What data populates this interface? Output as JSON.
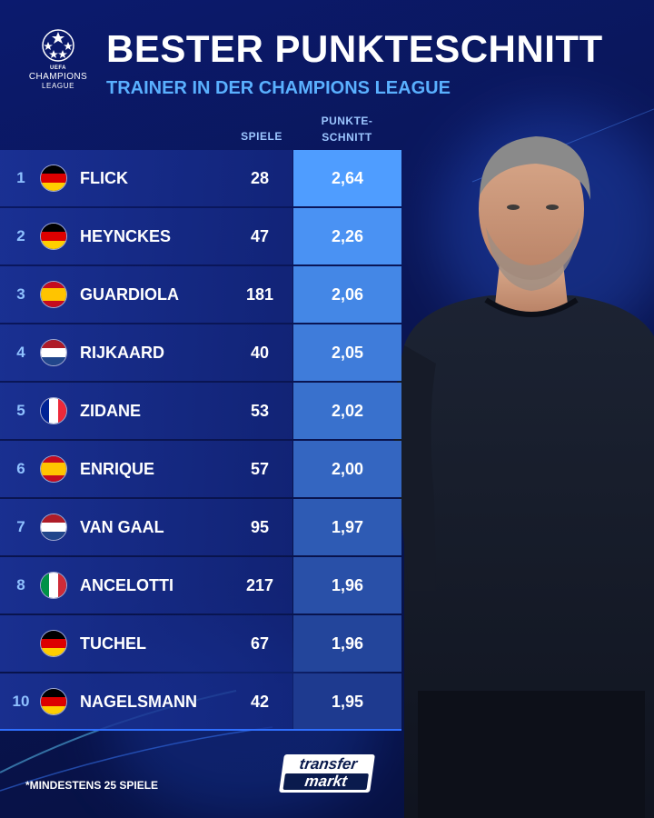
{
  "header": {
    "title": "BESTER PUNKTESCHNITT",
    "subtitle": "TRAINER IN DER CHAMPIONS LEAGUE"
  },
  "logo": {
    "icon": "champions-league-starball-icon",
    "uefa": "UEFA",
    "line1": "CHAMPIONS",
    "line2": "LEAGUE"
  },
  "columns": {
    "games": "SPIELE",
    "avg_line1": "PUNKTE-",
    "avg_line2": "SCHNITT"
  },
  "rows": [
    {
      "rank": "1",
      "flag": "germany",
      "name": "FLICK",
      "games": "28",
      "avg": "2,64"
    },
    {
      "rank": "2",
      "flag": "germany",
      "name": "HEYNCKES",
      "games": "47",
      "avg": "2,26"
    },
    {
      "rank": "3",
      "flag": "spain",
      "name": "GUARDIOLA",
      "games": "181",
      "avg": "2,06"
    },
    {
      "rank": "4",
      "flag": "netherlands",
      "name": "RIJKAARD",
      "games": "40",
      "avg": "2,05"
    },
    {
      "rank": "5",
      "flag": "france",
      "name": "ZIDANE",
      "games": "53",
      "avg": "2,02"
    },
    {
      "rank": "6",
      "flag": "spain",
      "name": "ENRIQUE",
      "games": "57",
      "avg": "2,00"
    },
    {
      "rank": "7",
      "flag": "netherlands",
      "name": "VAN GAAL",
      "games": "95",
      "avg": "1,97"
    },
    {
      "rank": "8",
      "flag": "italy",
      "name": "ANCELOTTI",
      "games": "217",
      "avg": "1,96"
    },
    {
      "rank": "",
      "flag": "germany",
      "name": "TUCHEL",
      "games": "67",
      "avg": "1,96"
    },
    {
      "rank": "10",
      "flag": "germany",
      "name": "NAGELSMANN",
      "games": "42",
      "avg": "1,95"
    }
  ],
  "footer": {
    "note": "*MINDESTENS 25 SPIELE",
    "brand_line1": "transfer",
    "brand_line2": "markt"
  },
  "colors": {
    "background": "#0a1552",
    "accent_blue": "#5ab0ff",
    "avg_cell_top": "#4f9dff",
    "avg_cell_bottom": "#1e3a8f",
    "row_bg": "#1c349b"
  },
  "flags": {
    "germany": [
      "#000000",
      "#dd0000",
      "#ffce00"
    ],
    "spain": [
      "#c60b1e",
      "#ffc400",
      "#c60b1e"
    ],
    "netherlands": [
      "#ae1c28",
      "#ffffff",
      "#21468b"
    ],
    "france": [
      "#002395",
      "#ffffff",
      "#ed2939"
    ],
    "italy": [
      "#009246",
      "#ffffff",
      "#ce2b37"
    ]
  }
}
